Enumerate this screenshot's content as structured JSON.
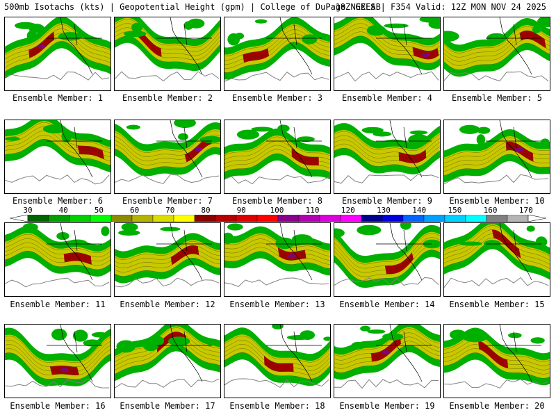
{
  "header": {
    "left": "500mb Isotachs (kts) | Geopotential Height (gpm) | College of DuPage NEXLAB",
    "right": "18Z GEFS | F354 Valid: 12Z MON NOV 24 2025"
  },
  "members": [
    {
      "label": "Ensemble Member: 1",
      "variant": 0
    },
    {
      "label": "Ensemble Member: 2",
      "variant": 1
    },
    {
      "label": "Ensemble Member: 3",
      "variant": 2
    },
    {
      "label": "Ensemble Member: 4",
      "variant": 3
    },
    {
      "label": "Ensemble Member: 5",
      "variant": 4
    },
    {
      "label": "Ensemble Member: 6",
      "variant": 5
    },
    {
      "label": "Ensemble Member: 7",
      "variant": 6
    },
    {
      "label": "Ensemble Member: 8",
      "variant": 7
    },
    {
      "label": "Ensemble Member: 9",
      "variant": 8
    },
    {
      "label": "Ensemble Member: 10",
      "variant": 9
    },
    {
      "label": "Ensemble Member: 11",
      "variant": 10
    },
    {
      "label": "Ensemble Member: 12",
      "variant": 11
    },
    {
      "label": "Ensemble Member: 13",
      "variant": 12
    },
    {
      "label": "Ensemble Member: 14",
      "variant": 13
    },
    {
      "label": "Ensemble Member: 15",
      "variant": 14
    },
    {
      "label": "Ensemble Member: 16",
      "variant": 15
    },
    {
      "label": "Ensemble Member: 17",
      "variant": 16
    },
    {
      "label": "Ensemble Member: 18",
      "variant": 17
    },
    {
      "label": "Ensemble Member: 19",
      "variant": 18
    },
    {
      "label": "Ensemble Member: 20",
      "variant": 19
    }
  ],
  "colorbar": {
    "ticks": [
      "30",
      "40",
      "50",
      "60",
      "70",
      "80",
      "90",
      "100",
      "110",
      "120",
      "130",
      "140",
      "150",
      "160",
      "170"
    ],
    "colors": [
      "#006400",
      "#00a000",
      "#00d000",
      "#00ff00",
      "#8b8b00",
      "#b4b400",
      "#dcdc00",
      "#ffff00",
      "#8b0000",
      "#b40000",
      "#dc0000",
      "#ff0000",
      "#8b008b",
      "#b400b4",
      "#dc00dc",
      "#ff00ff",
      "#00008b",
      "#0000dc",
      "#0064ff",
      "#00a0ff",
      "#00d0ff",
      "#00ffff",
      "#808080",
      "#b4b4b4"
    ]
  },
  "palette": {
    "weak": "#00b000",
    "mid": "#c8c800",
    "strong": "#a00000",
    "max": "#800080",
    "height": "#808080",
    "coast": "#000000"
  }
}
